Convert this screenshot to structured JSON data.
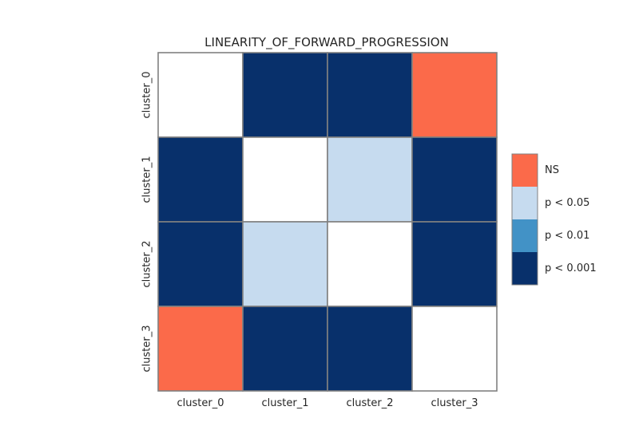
{
  "chart_data": {
    "type": "heatmap",
    "title": "LINEARITY_OF_FORWARD_PROGRESSION",
    "x_labels": [
      "cluster_0",
      "cluster_1",
      "cluster_2",
      "cluster_3"
    ],
    "y_labels": [
      "cluster_0",
      "cluster_1",
      "cluster_2",
      "cluster_3"
    ],
    "matrix": [
      [
        null,
        "p < 0.001",
        "p < 0.001",
        "NS"
      ],
      [
        "p < 0.001",
        null,
        "p < 0.05",
        "p < 0.001"
      ],
      [
        "p < 0.001",
        "p < 0.05",
        null,
        "p < 0.001"
      ],
      [
        "NS",
        "p < 0.001",
        "p < 0.001",
        null
      ]
    ],
    "legend": {
      "placement": "right",
      "entries": [
        {
          "label": "NS",
          "color": "#fb6a4a"
        },
        {
          "label": "p < 0.05",
          "color": "#c6dbef"
        },
        {
          "label": "p < 0.01",
          "color": "#4292c6"
        },
        {
          "label": "p < 0.001",
          "color": "#08306b"
        }
      ]
    },
    "diagonal_color": "#ffffff",
    "grid_line_color": "#808080",
    "grid": true
  }
}
